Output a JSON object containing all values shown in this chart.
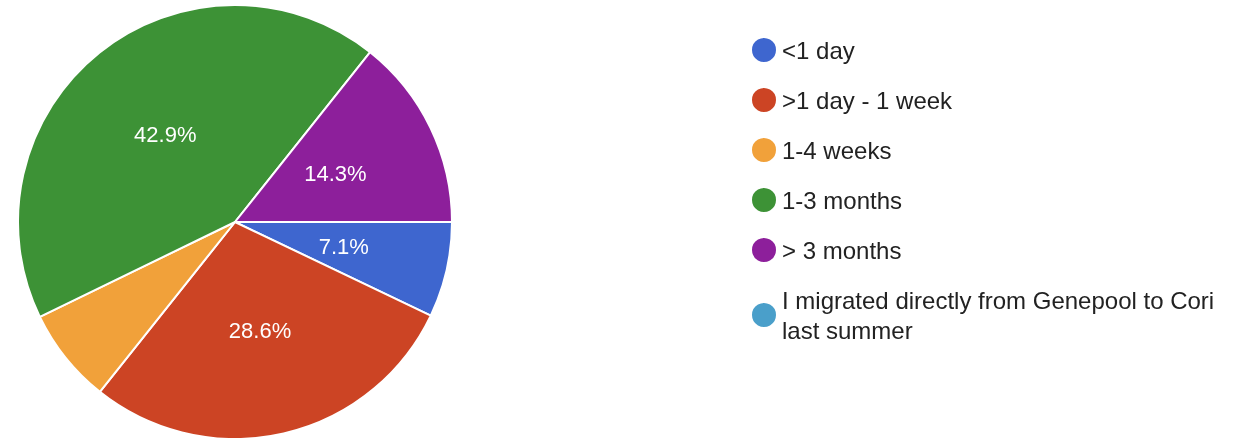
{
  "chart_data": {
    "type": "pie",
    "categories": [
      "<1 day",
      ">1 day - 1 week",
      "1-4 weeks",
      "1-3 months",
      "> 3 months",
      "I migrated directly from Genepool to Cori last summer"
    ],
    "values": [
      7.1,
      28.6,
      7.1,
      42.9,
      14.3,
      0
    ],
    "colors": [
      "#3e66cf",
      "#cc4424",
      "#f1a13a",
      "#3d9236",
      "#8d1f9b",
      "#4a9fca"
    ],
    "value_labels": [
      "7.1%",
      "28.6%",
      null,
      "42.9%",
      "14.3%",
      null
    ],
    "legend": "right"
  }
}
